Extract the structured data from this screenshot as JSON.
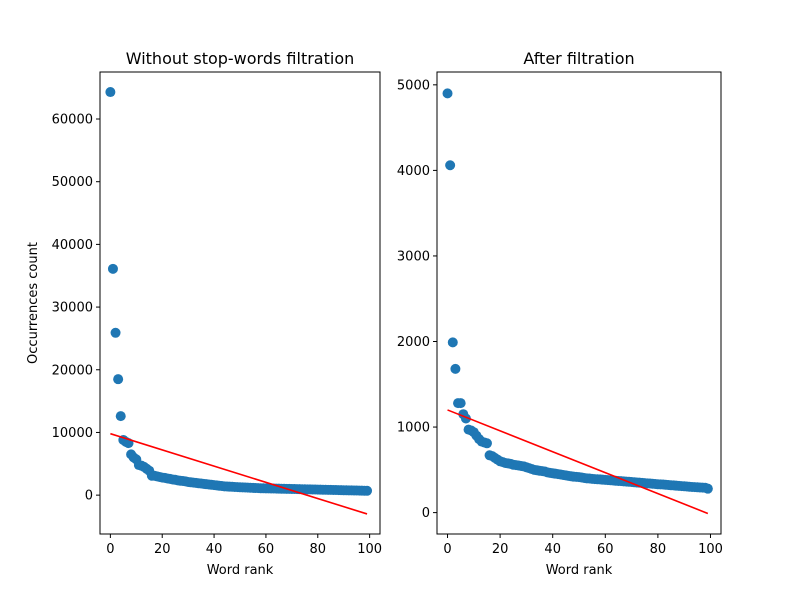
{
  "chart_data": [
    {
      "type": "scatter",
      "title": "Without stop-words filtration",
      "xlabel": "Word rank",
      "ylabel": "Occurrences count",
      "xlim": [
        -4,
        104
      ],
      "ylim": [
        -6200,
        67500
      ],
      "xticks": [
        "0",
        "20",
        "40",
        "60",
        "80",
        "100"
      ],
      "yticks": [
        "0",
        "10000",
        "20000",
        "30000",
        "40000",
        "50000",
        "60000"
      ],
      "grid": false,
      "colors": {
        "points": "#1f77b4",
        "fit_line": "#ff0000"
      },
      "series": [
        {
          "x": [
            0,
            1,
            2,
            3,
            4,
            5,
            6,
            7,
            8,
            9,
            10,
            11,
            12,
            13,
            14,
            15,
            16,
            17,
            18,
            19,
            20,
            21,
            22,
            23,
            24,
            25,
            26,
            27,
            28,
            29,
            30,
            31,
            32,
            33,
            34,
            35,
            36,
            37,
            38,
            39,
            40,
            41,
            42,
            43,
            44,
            45,
            46,
            47,
            48,
            49,
            50,
            51,
            52,
            53,
            54,
            55,
            56,
            57,
            58,
            59,
            60,
            61,
            62,
            63,
            64,
            65,
            66,
            67,
            68,
            69,
            70,
            71,
            72,
            73,
            74,
            75,
            76,
            77,
            78,
            79,
            80,
            81,
            82,
            83,
            84,
            85,
            86,
            87,
            88,
            89,
            90,
            91,
            92,
            93,
            94,
            95,
            96,
            97,
            98,
            99
          ],
          "y": [
            64300,
            36100,
            25900,
            18500,
            12600,
            8800,
            8500,
            8300,
            6500,
            6000,
            5700,
            4800,
            4700,
            4500,
            4200,
            3900,
            3100,
            3100,
            3000,
            2900,
            2800,
            2750,
            2650,
            2600,
            2500,
            2450,
            2350,
            2300,
            2250,
            2200,
            2100,
            2050,
            2000,
            1950,
            1900,
            1850,
            1800,
            1750,
            1700,
            1650,
            1600,
            1550,
            1500,
            1450,
            1400,
            1380,
            1350,
            1330,
            1300,
            1280,
            1260,
            1240,
            1220,
            1200,
            1180,
            1160,
            1140,
            1120,
            1100,
            1090,
            1080,
            1070,
            1060,
            1050,
            1040,
            1030,
            1020,
            1010,
            1000,
            990,
            980,
            970,
            960,
            950,
            940,
            930,
            920,
            910,
            900,
            890,
            880,
            870,
            860,
            850,
            840,
            830,
            820,
            810,
            800,
            790,
            780,
            770,
            760,
            750,
            740,
            730,
            720,
            710,
            700,
            690
          ]
        }
      ],
      "fit_line": {
        "x": [
          0,
          99
        ],
        "y": [
          9800,
          -3000
        ]
      }
    },
    {
      "type": "scatter",
      "title": "After filtration",
      "xlabel": "Word rank",
      "ylabel": "",
      "xlim": [
        -4,
        104
      ],
      "ylim": [
        -250,
        5150
      ],
      "xticks": [
        "0",
        "20",
        "40",
        "60",
        "80",
        "100"
      ],
      "yticks": [
        "0",
        "1000",
        "2000",
        "3000",
        "4000",
        "5000"
      ],
      "grid": false,
      "colors": {
        "points": "#1f77b4",
        "fit_line": "#ff0000"
      },
      "series": [
        {
          "x": [
            0,
            1,
            2,
            3,
            4,
            5,
            6,
            7,
            8,
            9,
            10,
            11,
            12,
            13,
            14,
            15,
            16,
            17,
            18,
            19,
            20,
            21,
            22,
            23,
            24,
            25,
            26,
            27,
            28,
            29,
            30,
            31,
            32,
            33,
            34,
            35,
            36,
            37,
            38,
            39,
            40,
            41,
            42,
            43,
            44,
            45,
            46,
            47,
            48,
            49,
            50,
            51,
            52,
            53,
            54,
            55,
            56,
            57,
            58,
            59,
            60,
            61,
            62,
            63,
            64,
            65,
            66,
            67,
            68,
            69,
            70,
            71,
            72,
            73,
            74,
            75,
            76,
            77,
            78,
            79,
            80,
            81,
            82,
            83,
            84,
            85,
            86,
            87,
            88,
            89,
            90,
            91,
            92,
            93,
            94,
            95,
            96,
            97,
            98,
            99
          ],
          "y": [
            4900,
            4060,
            1990,
            1680,
            1280,
            1280,
            1150,
            1100,
            970,
            960,
            940,
            900,
            860,
            830,
            820,
            810,
            670,
            660,
            640,
            620,
            600,
            590,
            580,
            575,
            570,
            560,
            555,
            550,
            545,
            540,
            530,
            520,
            510,
            500,
            495,
            490,
            485,
            480,
            470,
            465,
            460,
            455,
            450,
            445,
            440,
            435,
            430,
            425,
            420,
            418,
            415,
            410,
            405,
            400,
            398,
            395,
            392,
            390,
            388,
            385,
            382,
            380,
            378,
            375,
            372,
            370,
            368,
            365,
            362,
            360,
            358,
            355,
            352,
            350,
            348,
            345,
            342,
            340,
            338,
            335,
            332,
            330,
            328,
            325,
            322,
            320,
            318,
            315,
            312,
            310,
            308,
            305,
            302,
            300,
            298,
            296,
            294,
            292,
            290,
            280
          ]
        }
      ],
      "fit_line": {
        "x": [
          0,
          99
        ],
        "y": [
          1200,
          -10
        ]
      }
    }
  ]
}
